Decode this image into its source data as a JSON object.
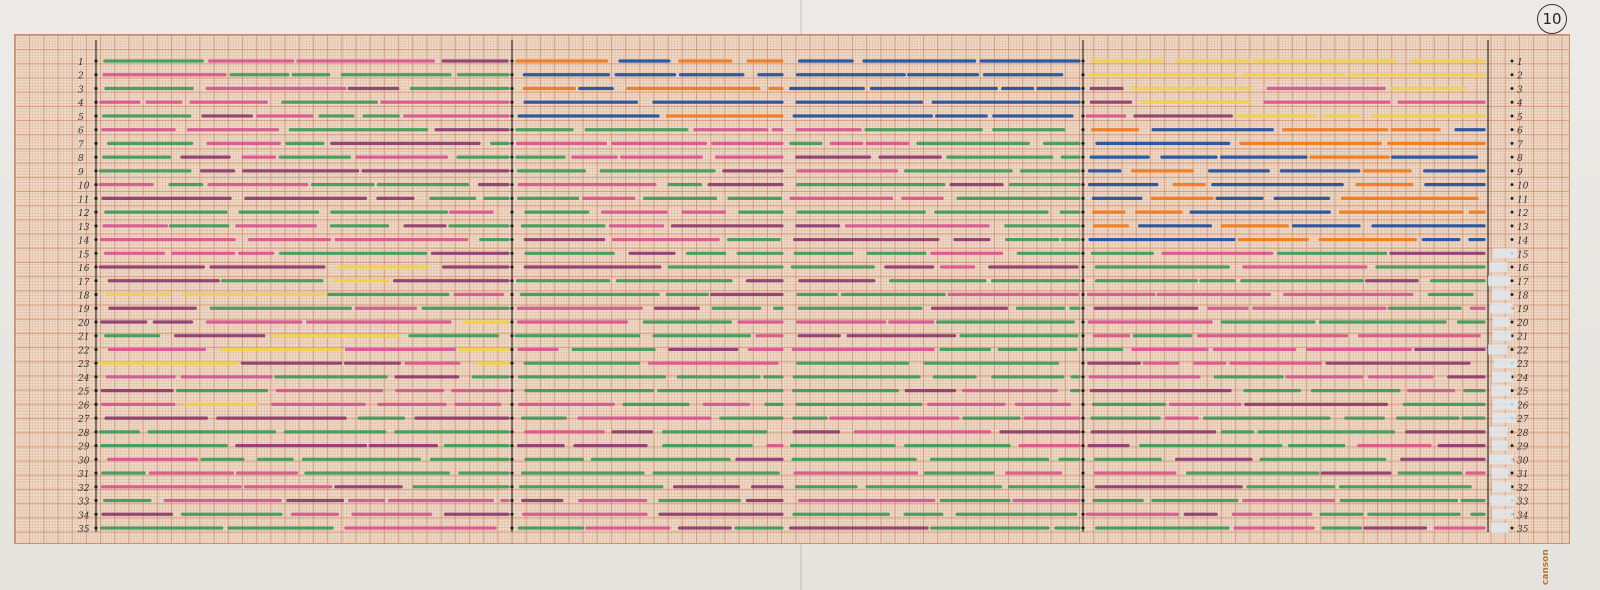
{
  "page_number": "10",
  "brand": "canson",
  "left_notes": [
    "",
    "",
    "",
    ""
  ],
  "colors": {
    "green": "#3f9a5a",
    "pink": "#d8558e",
    "purple": "#8d3b6e",
    "yellow": "#f1d24a",
    "orange": "#f07a1e",
    "blue": "#1f4f9e",
    "dark_green": "#1f5a38",
    "ink": "#222222"
  },
  "row_labels": [
    "1",
    "2",
    "3",
    "4",
    "5",
    "6",
    "7",
    "8",
    "9",
    "10",
    "11",
    "12",
    "13",
    "14",
    "15",
    "16",
    "17",
    "18",
    "19",
    "20",
    "21",
    "22",
    "23",
    "24",
    "25",
    "26",
    "27",
    "28",
    "29",
    "30",
    "31",
    "32",
    "33",
    "34",
    "35"
  ],
  "left_row_labels": [
    "1",
    "2",
    "3",
    "4",
    "5",
    "6",
    "7",
    "8",
    "9",
    "10",
    "11",
    "12",
    "13",
    "14",
    "15",
    "16",
    "17",
    "18",
    "19",
    "20",
    "21",
    "22",
    "23",
    "24",
    "25",
    "26",
    "27",
    "28",
    "29",
    "30",
    "31",
    "32",
    "33",
    "34",
    "35"
  ]
}
